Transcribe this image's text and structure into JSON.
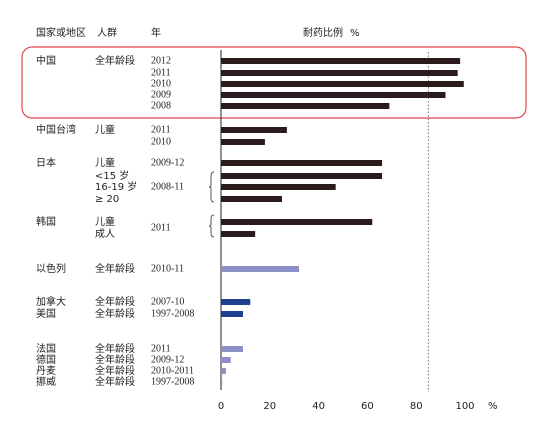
{
  "chart_data": {
    "type": "bar",
    "orientation": "horizontal",
    "headers": {
      "country": "国家或地区",
      "group": "人群",
      "year": "年",
      "value": "耐药比例",
      "unit": "%"
    },
    "rows": [
      {
        "country": "中国",
        "group": "全年龄段",
        "year": "2012",
        "value": 98,
        "color": "#2b1b1c"
      },
      {
        "year": "2011",
        "value": 97,
        "color": "#2b1b1c"
      },
      {
        "year": "2010",
        "value": 99.5,
        "color": "#2b1b1c"
      },
      {
        "year": "2009",
        "value": 92,
        "color": "#2b1b1c"
      },
      {
        "year": "2008",
        "value": 69,
        "color": "#2b1b1c"
      },
      {
        "country": "中国台湾",
        "group": "儿童",
        "year": "2011",
        "value": 27,
        "color": "#2b1b1c"
      },
      {
        "year": "2010",
        "value": 18,
        "color": "#2b1b1c"
      },
      {
        "country": "日本",
        "group": "儿童",
        "year": "2009-12",
        "value": 66,
        "color": "#2b1b1c"
      },
      {
        "group": "<15 岁",
        "value": 66,
        "color": "#2b1b1c"
      },
      {
        "group": "16-19 岁",
        "year": "2008-11",
        "value": 47,
        "color": "#2b1b1c"
      },
      {
        "group": "≥ 20",
        "value": 25,
        "color": "#2b1b1c"
      },
      {
        "country": "韩国",
        "group": "儿童",
        "year": "2011",
        "value": 62,
        "color": "#2b1b1c"
      },
      {
        "group": "成人",
        "value": 14,
        "color": "#2b1b1c"
      },
      {
        "country": "以色列",
        "group": "全年龄段",
        "year": "2010-11",
        "value": 32,
        "color": "#8d8fc9"
      },
      {
        "country": "加拿大",
        "group": "全年龄段",
        "year": "2007-10",
        "value": 12,
        "color": "#1f3f8f"
      },
      {
        "country": "美国",
        "group": "全年龄段",
        "year": "1997-2008",
        "value": 9,
        "color": "#1f3f8f"
      },
      {
        "country": "法国",
        "group": "全年龄段",
        "year": "2011",
        "value": 9,
        "color": "#8d8fc9"
      },
      {
        "country": "德国",
        "group": "全年龄段",
        "year": "2009-12",
        "value": 4,
        "color": "#8d8fc9"
      },
      {
        "country": "丹麦",
        "group": "全年龄段",
        "year": "2010-2011",
        "value": 2,
        "color": "#8d8fc9"
      },
      {
        "country": "挪威",
        "group": "全年龄段",
        "year": "1997-2008",
        "value": 0.5,
        "color": "#8d8fc9"
      }
    ],
    "xlim": [
      0,
      100
    ],
    "xticks": [
      0,
      20,
      40,
      60,
      80,
      100
    ],
    "reference_line": 85
  }
}
